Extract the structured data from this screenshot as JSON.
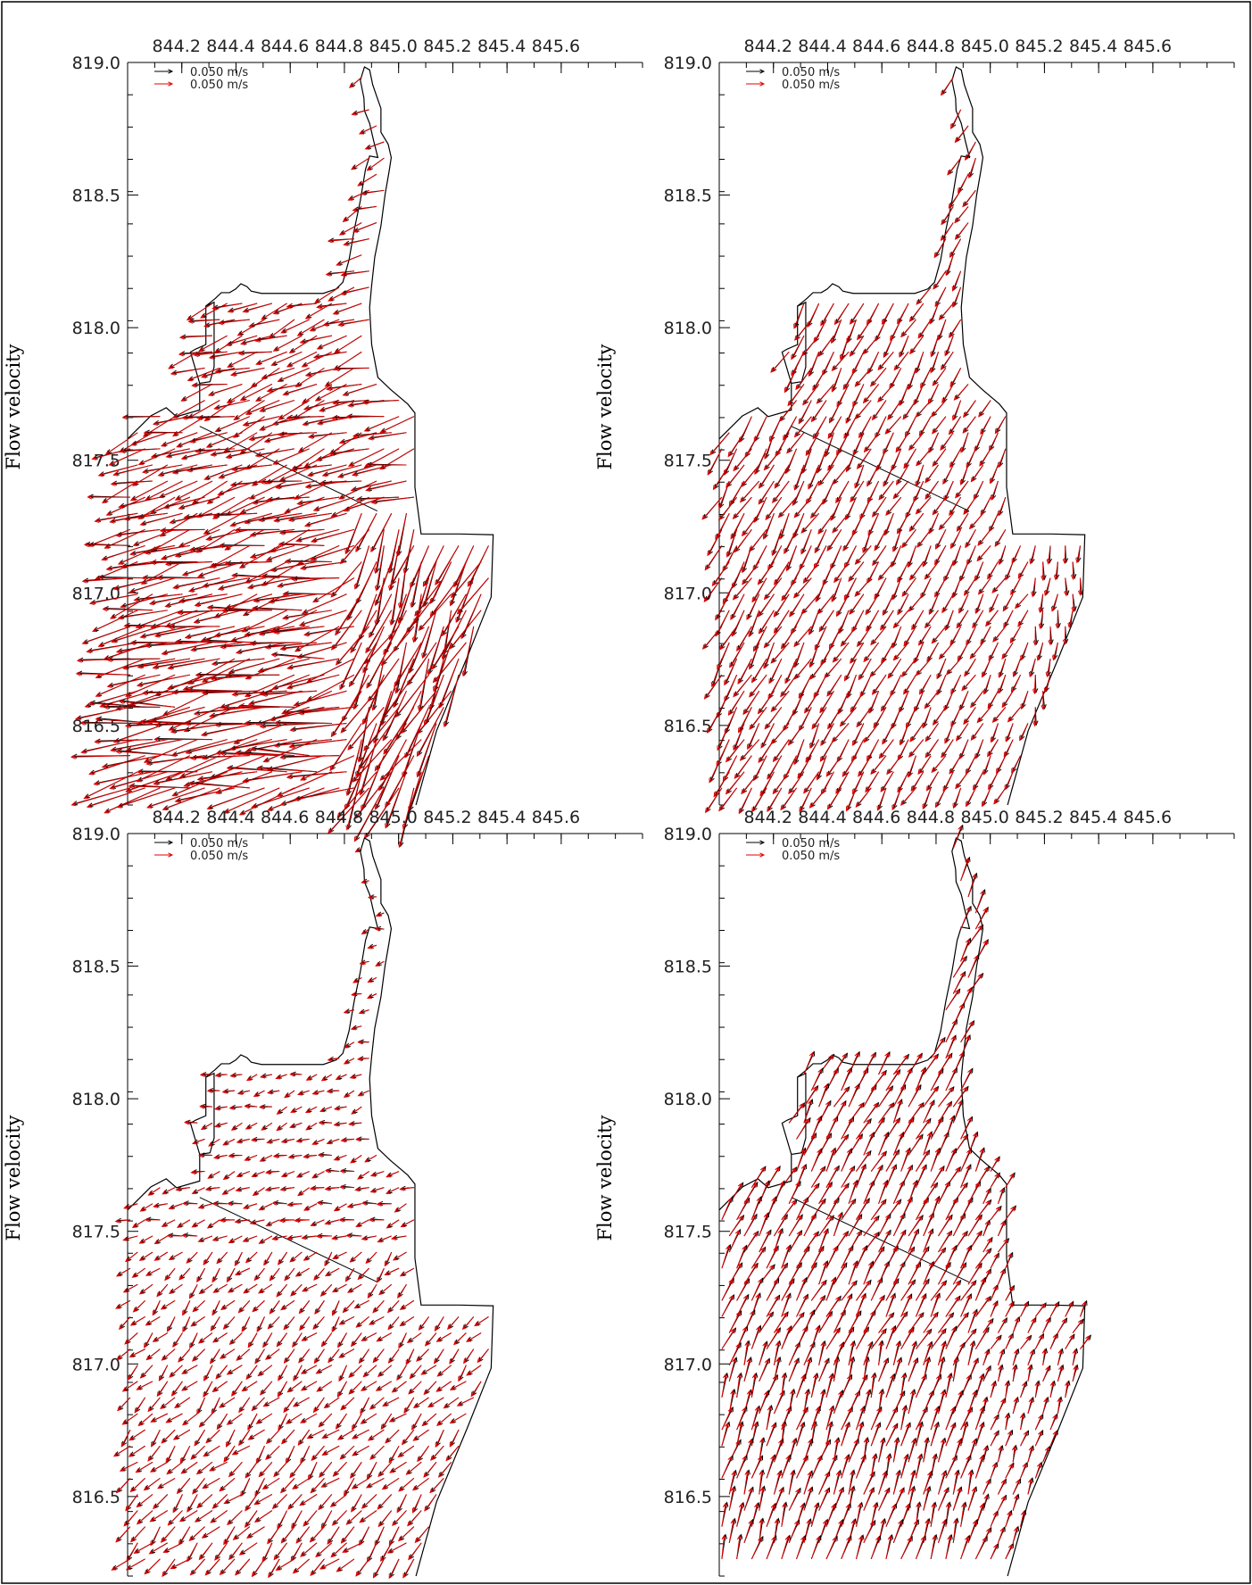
{
  "chart_data": [
    {
      "id": "panel-top-left",
      "type": "vector-field",
      "ylabel": "Flow velocity",
      "x_ticks": [
        "844.2",
        "844.4",
        "844.6",
        "844.8",
        "845.0",
        "845.2",
        "845.4",
        "845.6"
      ],
      "y_ticks": [
        "819.0",
        "818.5",
        "818.0",
        "817.5",
        "817.0",
        "816.5"
      ],
      "xlim": [
        844.0,
        845.9
      ],
      "ylim": [
        816.2,
        819.0
      ],
      "legend": [
        {
          "label": "0.050 m/s",
          "color": "#000000"
        },
        {
          "label": "0.050 m/s",
          "color": "#e00000"
        }
      ],
      "flow_pattern": "westward",
      "arrow_scale": 1.5
    },
    {
      "id": "panel-top-right",
      "type": "vector-field",
      "ylabel": "Flow velocity",
      "x_ticks": [
        "844.2",
        "844.4",
        "844.6",
        "844.8",
        "845.0",
        "845.2",
        "845.4",
        "845.6"
      ],
      "y_ticks": [
        "819.0",
        "818.5",
        "818.0",
        "817.5",
        "817.0",
        "816.5"
      ],
      "xlim": [
        844.0,
        845.9
      ],
      "ylim": [
        816.2,
        819.0
      ],
      "legend": [
        {
          "label": "0.050 m/s",
          "color": "#000000"
        },
        {
          "label": "0.050 m/s",
          "color": "#e00000"
        }
      ],
      "flow_pattern": "southwest",
      "arrow_scale": 1.0
    },
    {
      "id": "panel-bottom-left",
      "type": "vector-field",
      "ylabel": "Flow velocity",
      "x_ticks": [
        "844.2",
        "844.4",
        "844.6",
        "844.8",
        "845.0",
        "845.2",
        "845.4",
        "845.6"
      ],
      "y_ticks": [
        "819.0",
        "818.5",
        "818.0",
        "817.5",
        "817.0",
        "816.5"
      ],
      "xlim": [
        844.0,
        845.9
      ],
      "ylim": [
        816.2,
        819.0
      ],
      "legend": [
        {
          "label": "0.050 m/s",
          "color": "#000000"
        },
        {
          "label": "0.050 m/s",
          "color": "#e00000"
        }
      ],
      "flow_pattern": "southwest-weak",
      "arrow_scale": 0.85
    },
    {
      "id": "panel-bottom-right",
      "type": "vector-field",
      "ylabel": "Flow velocity",
      "x_ticks": [
        "844.2",
        "844.4",
        "844.6",
        "844.8",
        "845.0",
        "845.2",
        "845.4",
        "845.6"
      ],
      "y_ticks": [
        "819.0",
        "818.5",
        "818.0",
        "817.5",
        "817.0",
        "816.5"
      ],
      "xlim": [
        844.0,
        845.9
      ],
      "ylim": [
        816.2,
        819.0
      ],
      "legend": [
        {
          "label": "0.050 m/s",
          "color": "#000000"
        },
        {
          "label": "0.050 m/s",
          "color": "#e00000"
        }
      ],
      "flow_pattern": "northeast",
      "arrow_scale": 1.0
    }
  ],
  "colors": {
    "axis": "#000000",
    "coastline": "#000000",
    "series_black": "#000000",
    "series_red": "#e00000",
    "frame": "#000000"
  }
}
